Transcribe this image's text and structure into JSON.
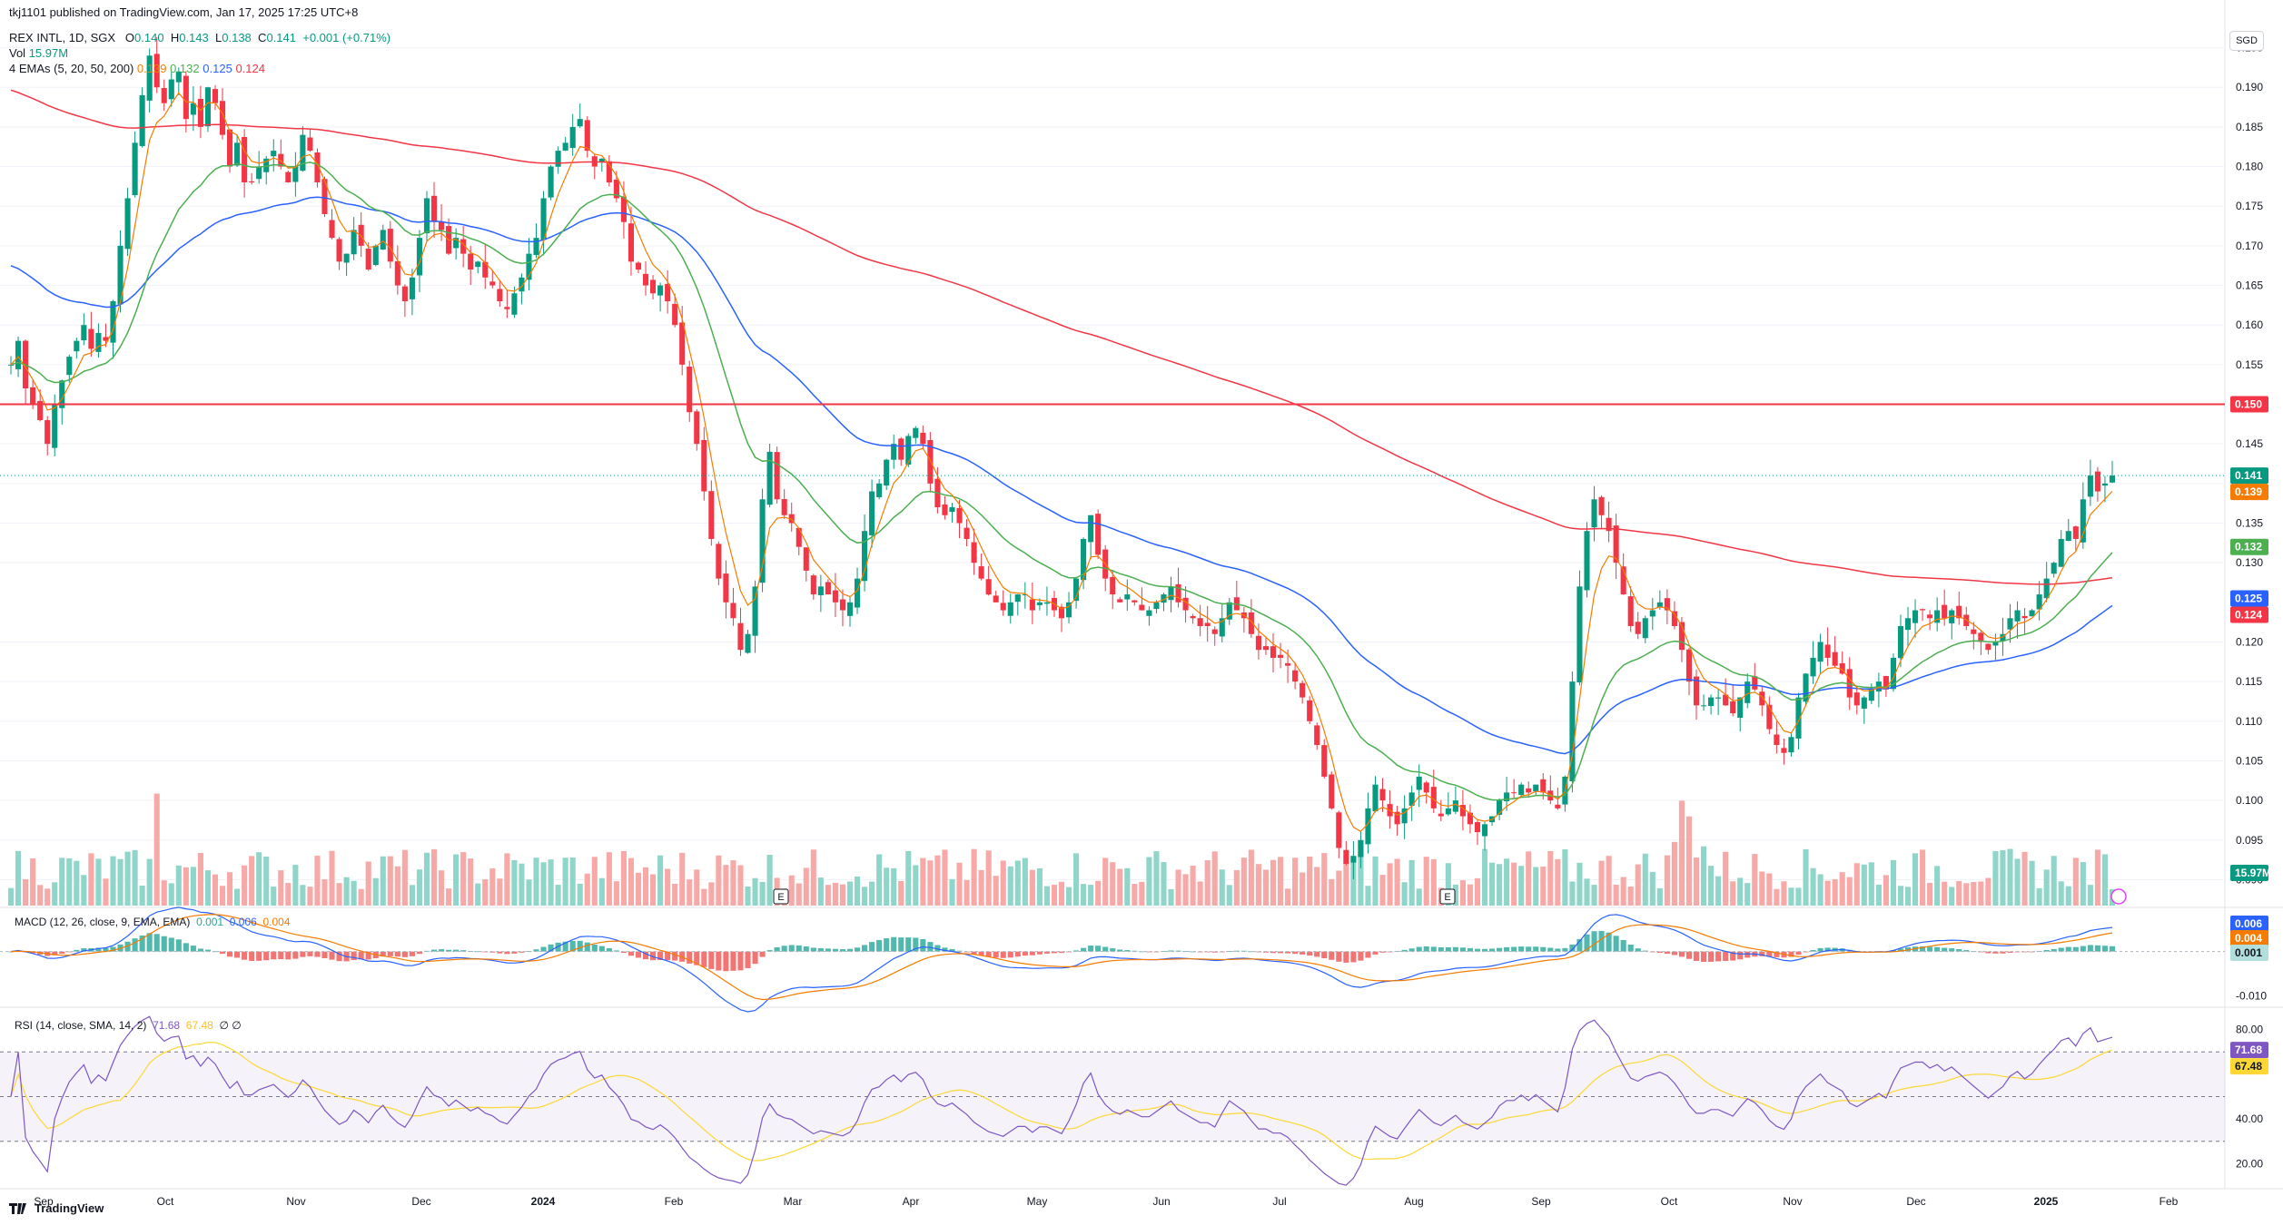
{
  "header": {
    "published_by": "tkj1101 published on TradingView.com, Jan 17, 2025 17:25 UTC+8",
    "symbol": "REX INTL, 1D, SGX",
    "o_label": "O",
    "o_value": "0.140",
    "h_label": "H",
    "h_value": "0.143",
    "l_label": "L",
    "l_value": "0.138",
    "c_label": "C",
    "c_value": "0.141",
    "change": "+0.001 (+0.71%)",
    "vol_label": "Vol",
    "vol_value": "15.97M",
    "ema_label": "4 EMAs (5, 20, 50, 200)",
    "ema_values": [
      "0.139",
      "0.132",
      "0.125",
      "0.124"
    ]
  },
  "currency_button": "SGD",
  "macd_header": {
    "label": "MACD (12, 26, close, 9, EMA, EMA)",
    "values": [
      "0.001",
      "0.006",
      "0.004"
    ]
  },
  "rsi_header": {
    "label": "RSI (14, close, SMA, 14, 2)",
    "values": [
      "71.68",
      "67.48"
    ],
    "extra": "∅ ∅"
  },
  "branding": "TradingView",
  "colors": {
    "up": "#089981",
    "down": "#f23645",
    "up_volume": "#8fd5c9",
    "down_volume": "#f7a9a7",
    "ema5": "#f57c00",
    "ema20": "#4caf50",
    "ema50": "#2962ff",
    "ema200": "#f23645",
    "resistance": "#f23645",
    "macd_line": "#2962ff",
    "signal_line": "#f57c00",
    "rsi_line": "#7e57c2",
    "rsi_ma": "#fdd835"
  },
  "chart_data": {
    "type": "candlestick",
    "title": "REX INTL, 1D, SGX",
    "currency": "SGD",
    "x_axis_labels": [
      "Sep",
      "Oct",
      "Nov",
      "Dec",
      "2024",
      "Feb",
      "Mar",
      "Apr",
      "May",
      "Jun",
      "Jul",
      "Aug",
      "Sep",
      "Oct",
      "Nov",
      "Dec",
      "2025",
      "Feb"
    ],
    "y_axis_labels": [
      "0.195",
      "0.190",
      "0.185",
      "0.180",
      "0.175",
      "0.170",
      "0.165",
      "0.160",
      "0.155",
      "0.145",
      "0.140",
      "0.135",
      "0.130",
      "0.120",
      "0.115",
      "0.110",
      "0.105",
      "0.100",
      "0.095",
      "0.090"
    ],
    "ylim": [
      0.0865,
      0.1985
    ],
    "resistance_line": {
      "value": 0.15,
      "label": "0.150"
    },
    "last_price_line": 0.141,
    "closes": [
      0.155,
      0.158,
      0.152,
      0.15,
      0.148,
      0.145,
      0.15,
      0.153,
      0.156,
      0.158,
      0.16,
      0.157,
      0.159,
      0.158,
      0.163,
      0.17,
      0.176,
      0.183,
      0.189,
      0.194,
      0.19,
      0.188,
      0.191,
      0.192,
      0.186,
      0.188,
      0.185,
      0.19,
      0.188,
      0.184,
      0.18,
      0.183,
      0.178,
      0.178,
      0.18,
      0.181,
      0.182,
      0.18,
      0.178,
      0.18,
      0.184,
      0.182,
      0.178,
      0.174,
      0.171,
      0.168,
      0.169,
      0.172,
      0.17,
      0.167,
      0.17,
      0.172,
      0.168,
      0.165,
      0.163,
      0.166,
      0.171,
      0.176,
      0.173,
      0.172,
      0.169,
      0.171,
      0.169,
      0.167,
      0.168,
      0.166,
      0.165,
      0.163,
      0.162,
      0.164,
      0.166,
      0.169,
      0.171,
      0.176,
      0.18,
      0.182,
      0.183,
      0.185,
      0.186,
      0.182,
      0.18,
      0.181,
      0.178,
      0.176,
      0.173,
      0.168,
      0.167,
      0.165,
      0.164,
      0.165,
      0.163,
      0.16,
      0.155,
      0.149,
      0.145,
      0.139,
      0.133,
      0.128,
      0.125,
      0.123,
      0.119,
      0.121,
      0.127,
      0.138,
      0.144,
      0.138,
      0.136,
      0.135,
      0.132,
      0.129,
      0.126,
      0.127,
      0.126,
      0.125,
      0.124,
      0.125,
      0.128,
      0.134,
      0.139,
      0.14,
      0.143,
      0.145,
      0.143,
      0.146,
      0.147,
      0.145,
      0.14,
      0.137,
      0.136,
      0.137,
      0.135,
      0.133,
      0.13,
      0.128,
      0.126,
      0.125,
      0.124,
      0.125,
      0.126,
      0.126,
      0.124,
      0.125,
      0.125,
      0.124,
      0.123,
      0.125,
      0.128,
      0.133,
      0.136,
      0.131,
      0.128,
      0.126,
      0.125,
      0.126,
      0.125,
      0.124,
      0.124,
      0.125,
      0.126,
      0.127,
      0.125,
      0.124,
      0.123,
      0.122,
      0.122,
      0.121,
      0.123,
      0.125,
      0.124,
      0.123,
      0.121,
      0.119,
      0.119,
      0.118,
      0.118,
      0.117,
      0.115,
      0.113,
      0.11,
      0.107,
      0.103,
      0.099,
      0.094,
      0.092,
      0.093,
      0.095,
      0.099,
      0.102,
      0.1,
      0.098,
      0.097,
      0.099,
      0.101,
      0.103,
      0.101,
      0.099,
      0.098,
      0.099,
      0.1,
      0.098,
      0.097,
      0.096,
      0.097,
      0.098,
      0.1,
      0.101,
      0.101,
      0.102,
      0.101,
      0.102,
      0.101,
      0.1,
      0.099,
      0.103,
      0.115,
      0.127,
      0.134,
      0.138,
      0.136,
      0.134,
      0.13,
      0.126,
      0.122,
      0.121,
      0.123,
      0.124,
      0.125,
      0.124,
      0.122,
      0.119,
      0.115,
      0.112,
      0.112,
      0.113,
      0.113,
      0.112,
      0.111,
      0.113,
      0.115,
      0.114,
      0.112,
      0.109,
      0.107,
      0.106,
      0.108,
      0.113,
      0.116,
      0.118,
      0.12,
      0.118,
      0.117,
      0.116,
      0.113,
      0.112,
      0.113,
      0.114,
      0.115,
      0.114,
      0.118,
      0.122,
      0.123,
      0.124,
      0.124,
      0.123,
      0.124,
      0.123,
      0.124,
      0.123,
      0.122,
      0.121,
      0.12,
      0.119,
      0.12,
      0.121,
      0.123,
      0.124,
      0.123,
      0.124,
      0.126,
      0.128,
      0.13,
      0.133,
      0.134,
      0.133,
      0.138,
      0.141,
      0.139,
      0.14,
      0.141
    ],
    "vol_label": "15.97M",
    "macd_axis_labels": [
      "0.006",
      "0.004",
      "0.001",
      "-0.010"
    ],
    "macd_ylim": [
      -0.0125,
      0.0095
    ],
    "rsi_axis_labels": [
      "80.00",
      "71.68",
      "67.48",
      "40.00",
      "20.00"
    ],
    "rsi_ylim": [
      12,
      88
    ],
    "rsi_levels": [
      70,
      50,
      30
    ]
  }
}
